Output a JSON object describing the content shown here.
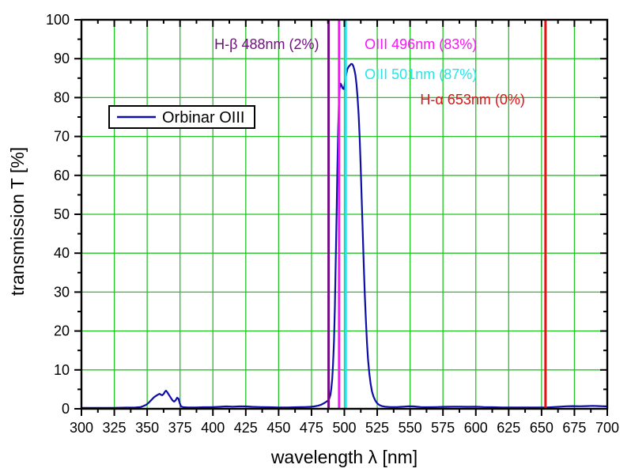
{
  "chart_data": {
    "type": "line",
    "title": "",
    "xlabel": "wavelength λ [nm]",
    "ylabel": "transmission T [%]",
    "xlim": [
      300,
      700
    ],
    "ylim": [
      0,
      100
    ],
    "x_major_step": 25,
    "x_minor_step": 12.5,
    "y_major_step": 10,
    "y_minor_step": 5,
    "grid": true,
    "x_tick_labels": [
      "300",
      "325",
      "350",
      "375",
      "400",
      "425",
      "450",
      "475",
      "500",
      "525",
      "550",
      "575",
      "600",
      "625",
      "650",
      "675",
      "700"
    ],
    "y_tick_labels": [
      "0",
      "10",
      "20",
      "30",
      "40",
      "50",
      "60",
      "70",
      "80",
      "90",
      "100"
    ],
    "colors": {
      "background": "#ffffff",
      "grid": "#22c322",
      "axis": "#000000",
      "curve": "#0d0da8",
      "tick_text": "#000000"
    },
    "legend": {
      "position": "upper-left-inside",
      "entries": [
        {
          "label": "Orbinar OIII",
          "color": "#0d0da8"
        }
      ]
    },
    "series": [
      {
        "name": "Orbinar OIII",
        "color": "#0d0da8",
        "points": [
          [
            300,
            0.25
          ],
          [
            312,
            0.25
          ],
          [
            324,
            0.25
          ],
          [
            334,
            0.3
          ],
          [
            341,
            0.35
          ],
          [
            345,
            0.45
          ],
          [
            347,
            0.7
          ],
          [
            349,
            1.0
          ],
          [
            351,
            1.5
          ],
          [
            353,
            2.2
          ],
          [
            355,
            2.9
          ],
          [
            357,
            3.4
          ],
          [
            358.5,
            3.7
          ],
          [
            359.5,
            3.85
          ],
          [
            360.5,
            3.6
          ],
          [
            361.5,
            3.5
          ],
          [
            362.5,
            3.8
          ],
          [
            363.5,
            4.4
          ],
          [
            364.3,
            4.65
          ],
          [
            365.2,
            4.3
          ],
          [
            366.5,
            3.6
          ],
          [
            368,
            2.8
          ],
          [
            369.5,
            2.1
          ],
          [
            370.5,
            1.85
          ],
          [
            371.6,
            2.15
          ],
          [
            372.8,
            2.85
          ],
          [
            373.8,
            2.6
          ],
          [
            374.8,
            1.4
          ],
          [
            375.8,
            0.6
          ],
          [
            377.5,
            0.4
          ],
          [
            381,
            0.35
          ],
          [
            387,
            0.35
          ],
          [
            393,
            0.4
          ],
          [
            399,
            0.4
          ],
          [
            405,
            0.5
          ],
          [
            410,
            0.6
          ],
          [
            415,
            0.55
          ],
          [
            420,
            0.6
          ],
          [
            425,
            0.6
          ],
          [
            430,
            0.5
          ],
          [
            436,
            0.45
          ],
          [
            443,
            0.4
          ],
          [
            450,
            0.35
          ],
          [
            457,
            0.35
          ],
          [
            464,
            0.4
          ],
          [
            470,
            0.45
          ],
          [
            474,
            0.5
          ],
          [
            477,
            0.6
          ],
          [
            480,
            0.8
          ],
          [
            482,
            1.0
          ],
          [
            484,
            1.35
          ],
          [
            486,
            1.75
          ],
          [
            487.5,
            2.1
          ],
          [
            488.5,
            2.6
          ],
          [
            489.4,
            3.6
          ],
          [
            490.1,
            5.2
          ],
          [
            490.8,
            7.8
          ],
          [
            491.4,
            11.5
          ],
          [
            492.1,
            17.5
          ],
          [
            492.8,
            26
          ],
          [
            493.4,
            37
          ],
          [
            494.1,
            50
          ],
          [
            494.7,
            62
          ],
          [
            495.3,
            72
          ],
          [
            495.9,
            79
          ],
          [
            496.4,
            82.3
          ],
          [
            497.1,
            83.6
          ],
          [
            497.9,
            83.1
          ],
          [
            498.7,
            82.4
          ],
          [
            499.5,
            82.2
          ],
          [
            500.2,
            83.1
          ],
          [
            500.8,
            84.6
          ],
          [
            501.5,
            86.1
          ],
          [
            502.3,
            87.3
          ],
          [
            503.2,
            87.9
          ],
          [
            504.2,
            88.3
          ],
          [
            505.2,
            88.65
          ],
          [
            506,
            88.6
          ],
          [
            506.8,
            88.1
          ],
          [
            507.6,
            87.2
          ],
          [
            508.4,
            85.8
          ],
          [
            509.2,
            83.5
          ],
          [
            510,
            80.3
          ],
          [
            510.8,
            75.8
          ],
          [
            511.6,
            70
          ],
          [
            512.4,
            62.5
          ],
          [
            513.2,
            54
          ],
          [
            514,
            45
          ],
          [
            514.8,
            36.5
          ],
          [
            515.6,
            29
          ],
          [
            516.4,
            22.5
          ],
          [
            517.2,
            17
          ],
          [
            518,
            12.8
          ],
          [
            519,
            9
          ],
          [
            520,
            6.3
          ],
          [
            521,
            4.5
          ],
          [
            522.2,
            3.1
          ],
          [
            523.6,
            2.1
          ],
          [
            525,
            1.4
          ],
          [
            526.5,
            1.0
          ],
          [
            528.5,
            0.7
          ],
          [
            531,
            0.55
          ],
          [
            535,
            0.45
          ],
          [
            540,
            0.45
          ],
          [
            545,
            0.55
          ],
          [
            549,
            0.65
          ],
          [
            553,
            0.6
          ],
          [
            558,
            0.45
          ],
          [
            564,
            0.4
          ],
          [
            570,
            0.45
          ],
          [
            576,
            0.5
          ],
          [
            582,
            0.55
          ],
          [
            588,
            0.55
          ],
          [
            594,
            0.5
          ],
          [
            600,
            0.55
          ],
          [
            606,
            0.45
          ],
          [
            613,
            0.4
          ],
          [
            620,
            0.35
          ],
          [
            629,
            0.35
          ],
          [
            638,
            0.35
          ],
          [
            647,
            0.35
          ],
          [
            654,
            0.35
          ],
          [
            659,
            0.45
          ],
          [
            664,
            0.55
          ],
          [
            669,
            0.65
          ],
          [
            674,
            0.7
          ],
          [
            679,
            0.65
          ],
          [
            684,
            0.7
          ],
          [
            689,
            0.75
          ],
          [
            694,
            0.7
          ],
          [
            700,
            0.6
          ]
        ]
      }
    ],
    "annotations": [
      {
        "type": "vline",
        "x": 488,
        "line_color": "#750d84",
        "label": "H-β 488nm (2%)"
      },
      {
        "type": "vline",
        "x": 496,
        "line_color": "#fb12fb",
        "label": "OIII 496nm (83%)"
      },
      {
        "type": "vline",
        "x": 501,
        "line_color": "#22e6ee",
        "label": "OIII 501nm (87%)"
      },
      {
        "type": "vline",
        "x": 653,
        "line_color": "#e01414",
        "label": "H-α 653nm (0%)"
      }
    ]
  }
}
